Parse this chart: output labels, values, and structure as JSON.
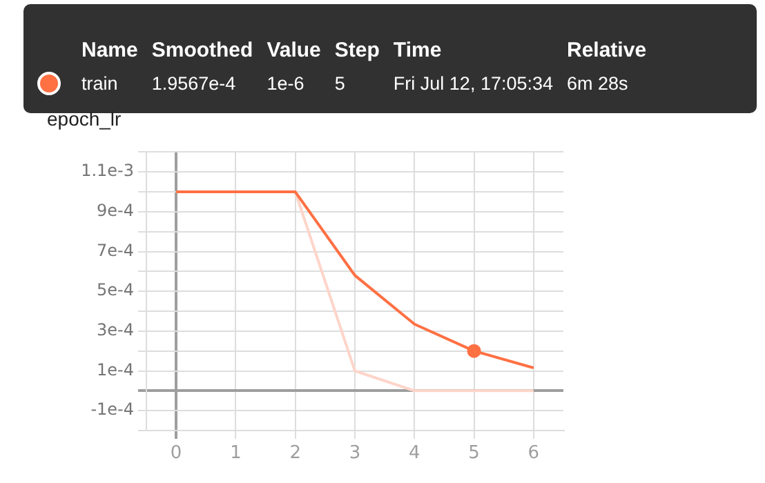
{
  "chart_data": {
    "type": "line",
    "title": "epoch_lr",
    "x": [
      0,
      1,
      2,
      3,
      4,
      5,
      6
    ],
    "series": [
      {
        "name": "train",
        "color": "#ff7043",
        "values": [
          0.001,
          0.001,
          0.001,
          0.00058,
          0.000335,
          0.0002,
          0.000115
        ]
      },
      {
        "color": "#fdd5c9",
        "values": [
          0.001,
          0.001,
          0.001,
          0.0001,
          0,
          0,
          0
        ]
      }
    ],
    "xlim": [
      -0.5,
      6.5
    ],
    "xticks": [
      0,
      1,
      2,
      3,
      4,
      5,
      6
    ],
    "ylim": [
      -0.0002,
      0.0012
    ],
    "yticks": [
      {
        "value": -0.0002,
        "label": null
      },
      {
        "value": -0.0001,
        "label": "-1e-4"
      },
      {
        "value": 0,
        "label": null
      },
      {
        "value": 0.0001,
        "label": "1e-4"
      },
      {
        "value": 0.0002,
        "label": null
      },
      {
        "value": 0.0003,
        "label": "3e-4"
      },
      {
        "value": 0.0004,
        "label": null
      },
      {
        "value": 0.0005,
        "label": "5e-4"
      },
      {
        "value": 0.0006,
        "label": null
      },
      {
        "value": 0.0007,
        "label": "7e-4"
      },
      {
        "value": 0.0008,
        "label": null
      },
      {
        "value": 0.0009,
        "label": "9e-4"
      },
      {
        "value": 0.001,
        "label": null
      },
      {
        "value": 0.0011,
        "label": "1.1e-3"
      },
      {
        "value": 0.0012,
        "label": null
      }
    ],
    "grid": true,
    "legend": "top",
    "marker": "none",
    "line_style": "solid",
    "annotations": [
      "Name",
      "Smoothed",
      "Value",
      "Step",
      "Time",
      "Relative",
      "1.9567e-4",
      "1e-6",
      "5",
      "Fri Jul 12, 17:05:34",
      "6m 28s"
    ]
  }
}
